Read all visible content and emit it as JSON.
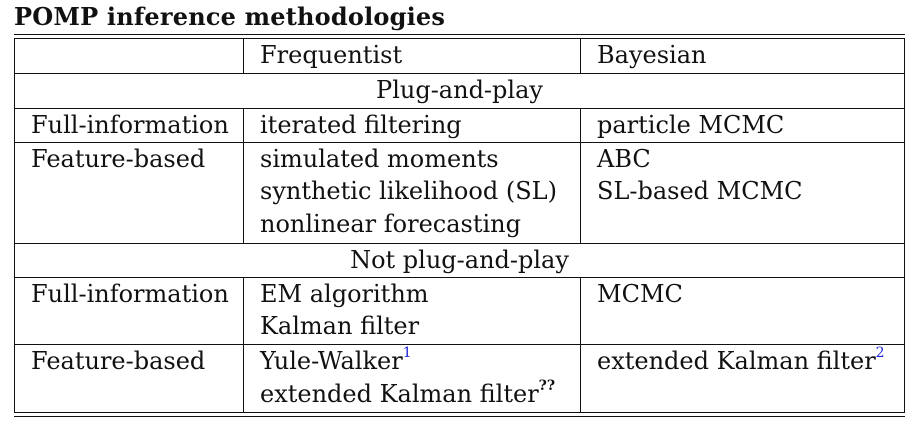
{
  "title": "POMP inference methodologies",
  "header": {
    "frequentist": "Frequentist",
    "bayesian": "Bayesian"
  },
  "sections": [
    {
      "label": "Plug-and-play",
      "rows": [
        {
          "type": "Full-information",
          "frequentist": [
            "iterated filtering"
          ],
          "bayesian": [
            "particle MCMC"
          ]
        },
        {
          "type": "Feature-based",
          "frequentist": [
            "simulated moments",
            "synthetic likelihood (SL)",
            "nonlinear forecasting"
          ],
          "bayesian": [
            "ABC",
            "SL-based MCMC"
          ]
        }
      ]
    },
    {
      "label": "Not plug-and-play",
      "rows": [
        {
          "type": "Full-information",
          "frequentist": [
            "EM algorithm",
            "Kalman filter"
          ],
          "bayesian": [
            "MCMC"
          ]
        },
        {
          "type": "Feature-based",
          "frequentist": [
            "Yule-Walker",
            "extended Kalman filter"
          ],
          "bayesian": [
            "extended Kalman filter"
          ]
        }
      ]
    }
  ],
  "footnotes": {
    "yule_walker": "1",
    "ekf_frequentist": "??",
    "ekf_bayesian": "2"
  }
}
